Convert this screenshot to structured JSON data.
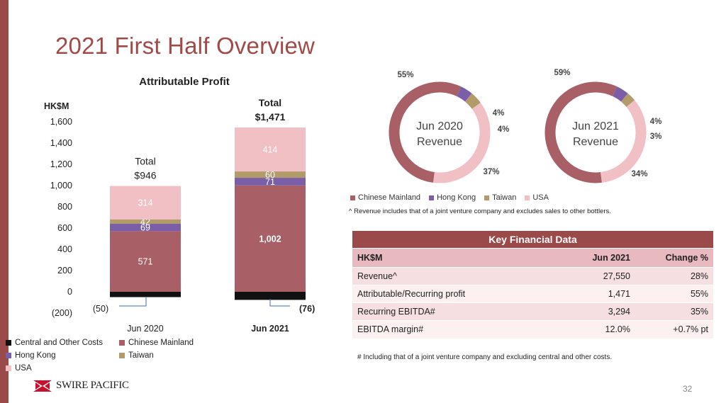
{
  "title": "2021 First Half Overview",
  "page_number": "32",
  "company": "SWIRE PACIFIC",
  "colors": {
    "accent": "#9b4a4a",
    "chinese_mainland": "#a85f66",
    "hong_kong": "#7a5fa8",
    "taiwan": "#b39a6b",
    "usa": "#f0c0c5",
    "central": "#111111"
  },
  "chart_data": [
    {
      "type": "bar",
      "title": "Attributable Profit",
      "ylabel": "HK$M",
      "ylim": [
        -200,
        1600
      ],
      "yticks": [
        "(200)",
        "0",
        "200",
        "400",
        "600",
        "800",
        "1,000",
        "1,200",
        "1,400",
        "1,600"
      ],
      "categories": [
        "Jun 2020",
        "Jun 2021"
      ],
      "series": [
        {
          "name": "Central and Other Costs",
          "values": [
            -50,
            -76
          ],
          "labels": [
            "(50)",
            "(76)"
          ]
        },
        {
          "name": "Chinese Mainland",
          "values": [
            571,
            1002
          ],
          "labels": [
            "571",
            "1,002"
          ]
        },
        {
          "name": "Hong Kong",
          "values": [
            69,
            71
          ],
          "labels": [
            "69",
            "71"
          ]
        },
        {
          "name": "Taiwan",
          "values": [
            42,
            60
          ],
          "labels": [
            "42",
            "60"
          ]
        },
        {
          "name": "USA",
          "values": [
            314,
            414
          ],
          "labels": [
            "314",
            "414"
          ]
        }
      ],
      "totals": [
        {
          "label": "Total",
          "value": "$946"
        },
        {
          "label": "Total",
          "value": "$1,471"
        }
      ]
    },
    {
      "type": "pie",
      "title": "Jun 2020 Revenue",
      "categories": [
        "Chinese Mainland",
        "Hong Kong",
        "Taiwan",
        "USA"
      ],
      "values": [
        55,
        4,
        4,
        37
      ],
      "labels": [
        "55%",
        "4%",
        "4%",
        "37%"
      ]
    },
    {
      "type": "pie",
      "title": "Jun 2021 Revenue",
      "categories": [
        "Chinese Mainland",
        "Hong Kong",
        "Taiwan",
        "USA"
      ],
      "values": [
        59,
        4,
        3,
        34
      ],
      "labels": [
        "59%",
        "4%",
        "3%",
        "34%"
      ]
    }
  ],
  "donut1": {
    "line1": "Jun 2020",
    "line2": "Revenue"
  },
  "donut2": {
    "line1": "Jun 2021",
    "line2": "Revenue"
  },
  "revenue_legend": [
    "Chinese Mainland",
    "Hong Kong",
    "Taiwan",
    "USA"
  ],
  "revenue_note": "^ Revenue includes that of a joint venture company and excludes sales to other bottlers.",
  "key_financial": {
    "title": "Key Financial Data",
    "headers": [
      "HK$M",
      "Jun 2021",
      "Change %"
    ],
    "rows": [
      [
        "Revenue^",
        "27,550",
        "28%"
      ],
      [
        "Attributable/Recurring profit",
        "1,471",
        "55%"
      ],
      [
        "Recurring EBITDA#",
        "3,294",
        "35%"
      ],
      [
        "EBITDA margin#",
        "12.0%",
        "+0.7% pt"
      ]
    ],
    "note": "# Including that of a joint venture company and excluding central and other costs."
  }
}
